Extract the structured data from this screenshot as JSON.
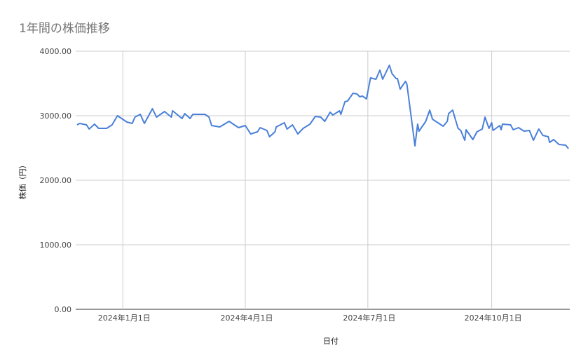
{
  "chart_data": {
    "type": "line",
    "title": "1年間の株価推移",
    "xlabel": "日付",
    "ylabel": "株価（円）",
    "xlim": [
      "2023-11-27",
      "2024-11-28"
    ],
    "ylim": [
      0,
      4000
    ],
    "grid": true,
    "line_color": "#4a80d9",
    "x_ticks": [
      {
        "date": "2024-01-01",
        "label": "2024年1月1日"
      },
      {
        "date": "2024-04-01",
        "label": "2024年4月1日"
      },
      {
        "date": "2024-07-01",
        "label": "2024年7月1日"
      },
      {
        "date": "2024-10-01",
        "label": "2024年10月1日"
      }
    ],
    "y_ticks": [
      {
        "value": 0,
        "label": "0.00"
      },
      {
        "value": 1000,
        "label": "1000.00"
      },
      {
        "value": 2000,
        "label": "2000.00"
      },
      {
        "value": 3000,
        "label": "3000.00"
      },
      {
        "value": 4000,
        "label": "4000.00"
      }
    ],
    "series": [
      {
        "points": [
          [
            "2023-11-28",
            2859
          ],
          [
            "2023-11-30",
            2880
          ],
          [
            "2023-12-05",
            2859
          ],
          [
            "2023-12-07",
            2793
          ],
          [
            "2023-12-11",
            2870
          ],
          [
            "2023-12-14",
            2804
          ],
          [
            "2023-12-20",
            2804
          ],
          [
            "2023-12-24",
            2859
          ],
          [
            "2023-12-28",
            3000
          ],
          [
            "2024-01-04",
            2902
          ],
          [
            "2024-01-08",
            2880
          ],
          [
            "2024-01-10",
            2978
          ],
          [
            "2024-01-14",
            3022
          ],
          [
            "2024-01-17",
            2880
          ],
          [
            "2024-01-23",
            3109
          ],
          [
            "2024-01-26",
            2978
          ],
          [
            "2024-02-01",
            3065
          ],
          [
            "2024-02-06",
            2978
          ],
          [
            "2024-02-07",
            3076
          ],
          [
            "2024-02-14",
            2957
          ],
          [
            "2024-02-16",
            3033
          ],
          [
            "2024-02-20",
            2957
          ],
          [
            "2024-02-22",
            3022
          ],
          [
            "2024-03-02",
            3022
          ],
          [
            "2024-03-05",
            2978
          ],
          [
            "2024-03-07",
            2848
          ],
          [
            "2024-03-13",
            2826
          ],
          [
            "2024-03-20",
            2913
          ],
          [
            "2024-03-23",
            2870
          ],
          [
            "2024-03-27",
            2815
          ],
          [
            "2024-04-01",
            2848
          ],
          [
            "2024-04-05",
            2717
          ],
          [
            "2024-04-10",
            2750
          ],
          [
            "2024-04-12",
            2815
          ],
          [
            "2024-04-17",
            2772
          ],
          [
            "2024-04-19",
            2674
          ],
          [
            "2024-04-23",
            2750
          ],
          [
            "2024-04-24",
            2826
          ],
          [
            "2024-04-30",
            2891
          ],
          [
            "2024-05-02",
            2793
          ],
          [
            "2024-05-06",
            2859
          ],
          [
            "2024-05-10",
            2717
          ],
          [
            "2024-05-14",
            2804
          ],
          [
            "2024-05-19",
            2870
          ],
          [
            "2024-05-23",
            2989
          ],
          [
            "2024-05-27",
            2978
          ],
          [
            "2024-05-30",
            2913
          ],
          [
            "2024-06-03",
            3054
          ],
          [
            "2024-06-05",
            3011
          ],
          [
            "2024-06-10",
            3076
          ],
          [
            "2024-06-11",
            3022
          ],
          [
            "2024-06-14",
            3217
          ],
          [
            "2024-06-16",
            3228
          ],
          [
            "2024-06-20",
            3348
          ],
          [
            "2024-06-23",
            3337
          ],
          [
            "2024-06-25",
            3293
          ],
          [
            "2024-06-27",
            3304
          ],
          [
            "2024-06-30",
            3261
          ],
          [
            "2024-07-03",
            3587
          ],
          [
            "2024-07-07",
            3565
          ],
          [
            "2024-07-10",
            3707
          ],
          [
            "2024-07-12",
            3565
          ],
          [
            "2024-07-17",
            3783
          ],
          [
            "2024-07-19",
            3652
          ],
          [
            "2024-07-22",
            3576
          ],
          [
            "2024-07-23",
            3576
          ],
          [
            "2024-07-25",
            3413
          ],
          [
            "2024-07-29",
            3533
          ],
          [
            "2024-07-30",
            3489
          ],
          [
            "2024-08-05",
            2533
          ],
          [
            "2024-08-07",
            2870
          ],
          [
            "2024-08-08",
            2761
          ],
          [
            "2024-08-13",
            2913
          ],
          [
            "2024-08-16",
            3087
          ],
          [
            "2024-08-18",
            2946
          ],
          [
            "2024-08-26",
            2837
          ],
          [
            "2024-08-29",
            2913
          ],
          [
            "2024-08-30",
            3033
          ],
          [
            "2024-09-02",
            3087
          ],
          [
            "2024-09-04",
            2946
          ],
          [
            "2024-09-06",
            2804
          ],
          [
            "2024-09-08",
            2772
          ],
          [
            "2024-09-11",
            2620
          ],
          [
            "2024-09-12",
            2783
          ],
          [
            "2024-09-17",
            2630
          ],
          [
            "2024-09-20",
            2750
          ],
          [
            "2024-09-24",
            2793
          ],
          [
            "2024-09-26",
            2978
          ],
          [
            "2024-09-29",
            2804
          ],
          [
            "2024-10-01",
            2891
          ],
          [
            "2024-10-02",
            2772
          ],
          [
            "2024-10-07",
            2848
          ],
          [
            "2024-10-08",
            2783
          ],
          [
            "2024-10-09",
            2870
          ],
          [
            "2024-10-15",
            2859
          ],
          [
            "2024-10-17",
            2783
          ],
          [
            "2024-10-21",
            2815
          ],
          [
            "2024-10-25",
            2761
          ],
          [
            "2024-10-29",
            2772
          ],
          [
            "2024-11-01",
            2620
          ],
          [
            "2024-11-05",
            2793
          ],
          [
            "2024-11-08",
            2696
          ],
          [
            "2024-11-12",
            2674
          ],
          [
            "2024-11-13",
            2587
          ],
          [
            "2024-11-16",
            2630
          ],
          [
            "2024-11-20",
            2554
          ],
          [
            "2024-11-25",
            2543
          ],
          [
            "2024-11-27",
            2489
          ]
        ]
      }
    ]
  }
}
